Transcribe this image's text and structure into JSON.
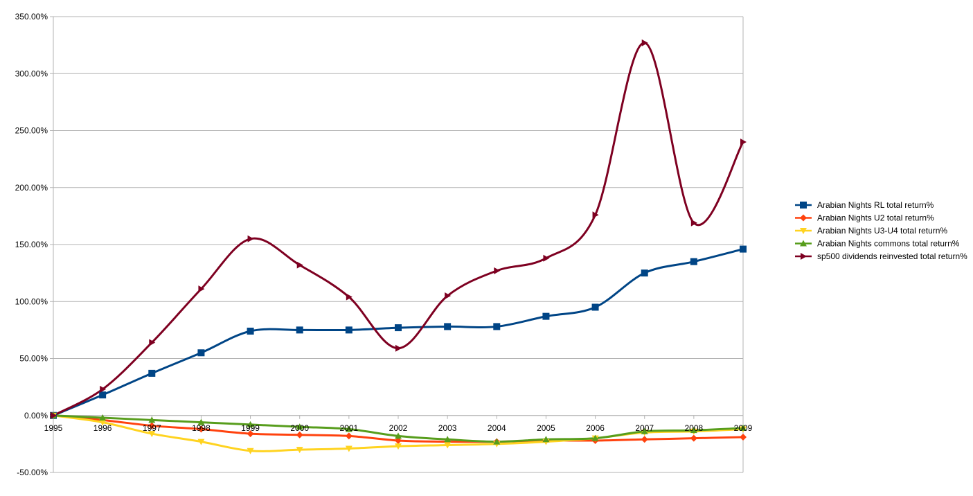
{
  "chart_data": {
    "type": "line",
    "title": "",
    "xlabel": "",
    "ylabel": "",
    "ylim": [
      -50,
      350
    ],
    "yticks": [
      -50,
      0,
      50,
      100,
      150,
      200,
      250,
      300,
      350
    ],
    "ytick_labels": [
      "-50.00%",
      "0.00%",
      "50.00%",
      "100.00%",
      "150.00%",
      "200.00%",
      "250.00%",
      "300.00%",
      "350.00%"
    ],
    "categories": [
      "1995",
      "1996",
      "1997",
      "1998",
      "1999",
      "2000",
      "2001",
      "2002",
      "2003",
      "2004",
      "2005",
      "2006",
      "2007",
      "2008",
      "2009"
    ],
    "grid": "horizontal",
    "legend_position": "right",
    "series": [
      {
        "name": "Arabian Nights RL total return%",
        "color": "#004586",
        "marker": "square",
        "values": [
          0,
          18,
          37,
          55,
          74,
          75,
          75,
          77,
          78,
          78,
          87,
          95,
          125,
          135,
          146
        ]
      },
      {
        "name": "Arabian Nights U2 total return%",
        "color": "#ff420e",
        "marker": "diamond",
        "values": [
          0,
          -4,
          -9,
          -12,
          -16,
          -17,
          -18,
          -22,
          -23,
          -23,
          -22,
          -22,
          -21,
          -20,
          -19
        ]
      },
      {
        "name": "Arabian Nights U3-U4 total return%",
        "color": "#ffd320",
        "marker": "triangle-down",
        "values": [
          0,
          -6,
          -16,
          -23,
          -31,
          -30,
          -29,
          -27,
          -26,
          -25,
          -23,
          -20,
          -15,
          -14,
          -12
        ]
      },
      {
        "name": "Arabian Nights commons total return%",
        "color": "#579d1c",
        "marker": "triangle-up",
        "values": [
          0,
          -2,
          -4,
          -6,
          -8,
          -10,
          -12,
          -18,
          -21,
          -23,
          -21,
          -20,
          -14,
          -13,
          -11
        ]
      },
      {
        "name": "sp500 dividends reinvested total return%",
        "color": "#7e0021",
        "marker": "triangle-right",
        "values": [
          0,
          23,
          64,
          111,
          155,
          132,
          104,
          59,
          105,
          127,
          138,
          176,
          327,
          169,
          240
        ]
      }
    ]
  }
}
